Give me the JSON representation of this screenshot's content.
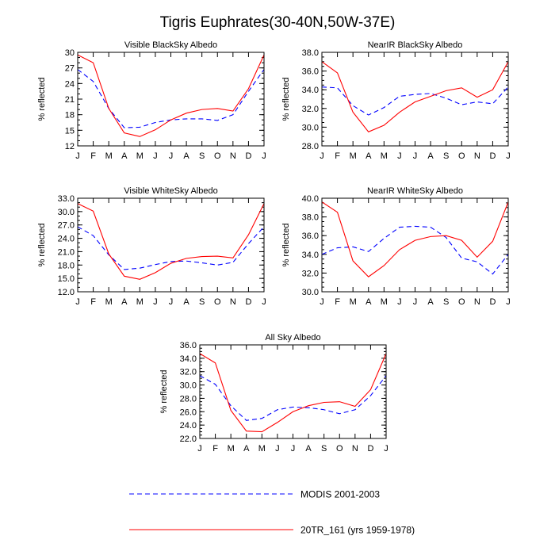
{
  "title": "Tigris Euphrates(30-40N,50W-37E)",
  "months": [
    "J",
    "F",
    "M",
    "A",
    "M",
    "J",
    "J",
    "A",
    "S",
    "O",
    "N",
    "D",
    "J"
  ],
  "legend": {
    "modis": {
      "label": "MODIS 2001-2003",
      "color": "#0000ff"
    },
    "tr": {
      "label": "20TR_161 (yrs 1959-1978)",
      "color": "#ff0000"
    }
  },
  "chart_data": [
    {
      "type": "line",
      "title": "Visible BlackSky Albedo",
      "ylabel": "% reflected",
      "ylim": [
        12,
        30
      ],
      "yticks": [
        "12",
        "15",
        "18",
        "21",
        "24",
        "27",
        "30"
      ],
      "yminor": 1,
      "series": [
        {
          "name": "MODIS 2001-2003",
          "key": "modis",
          "values": [
            26.7,
            24.4,
            19.2,
            15.5,
            15.6,
            16.5,
            17.0,
            17.2,
            17.2,
            16.9,
            18.0,
            22.5,
            26.7
          ]
        },
        {
          "name": "20TR_161 (yrs 1959-1978)",
          "key": "tr",
          "values": [
            29.5,
            28.0,
            19.2,
            14.5,
            13.8,
            15.1,
            17.0,
            18.3,
            19.0,
            19.2,
            18.7,
            23.0,
            29.5
          ]
        }
      ]
    },
    {
      "type": "line",
      "title": "NearIR BlackSky Albedo",
      "ylabel": "% reflected",
      "ylim": [
        28,
        38
      ],
      "yticks": [
        "28.0",
        "30.0",
        "32.0",
        "34.0",
        "36.0",
        "38.0"
      ],
      "yminor": 0.5,
      "series": [
        {
          "name": "MODIS 2001-2003",
          "key": "modis",
          "values": [
            34.3,
            34.2,
            32.3,
            31.3,
            32.1,
            33.3,
            33.5,
            33.6,
            33.1,
            32.4,
            32.7,
            32.5,
            34.3
          ]
        },
        {
          "name": "20TR_161 (yrs 1959-1978)",
          "key": "tr",
          "values": [
            37.0,
            35.8,
            31.6,
            29.5,
            30.2,
            31.6,
            32.7,
            33.3,
            33.9,
            34.2,
            33.2,
            34.0,
            37.0
          ]
        }
      ]
    },
    {
      "type": "line",
      "title": "Visible WhiteSky Albedo",
      "ylabel": "% reflected",
      "ylim": [
        12,
        33
      ],
      "yticks": [
        "12.0",
        "15.0",
        "18.0",
        "21.0",
        "24.0",
        "27.0",
        "30.0",
        "33.0"
      ],
      "yminor": 1,
      "series": [
        {
          "name": "MODIS 2001-2003",
          "key": "modis",
          "values": [
            26.6,
            24.6,
            20.3,
            17.0,
            17.3,
            18.1,
            18.8,
            18.9,
            18.5,
            18.0,
            18.6,
            22.8,
            26.6
          ]
        },
        {
          "name": "20TR_161 (yrs 1959-1978)",
          "key": "tr",
          "values": [
            31.8,
            30.1,
            20.5,
            15.5,
            14.8,
            16.3,
            18.4,
            19.5,
            19.9,
            20.0,
            19.6,
            24.8,
            31.8
          ]
        }
      ]
    },
    {
      "type": "line",
      "title": "NearIR WhiteSky Albedo",
      "ylabel": "% reflected",
      "ylim": [
        30,
        40
      ],
      "yticks": [
        "30.0",
        "32.0",
        "34.0",
        "36.0",
        "38.0",
        "40.0"
      ],
      "yminor": 0.5,
      "series": [
        {
          "name": "MODIS 2001-2003",
          "key": "modis",
          "values": [
            34.0,
            34.7,
            34.8,
            34.3,
            35.7,
            36.9,
            37.0,
            36.9,
            35.8,
            33.6,
            33.2,
            31.9,
            34.0
          ]
        },
        {
          "name": "20TR_161 (yrs 1959-1978)",
          "key": "tr",
          "values": [
            39.6,
            38.5,
            33.3,
            31.6,
            32.8,
            34.5,
            35.5,
            35.9,
            36.0,
            35.5,
            33.7,
            35.4,
            39.6
          ]
        }
      ]
    },
    {
      "type": "line",
      "title": "All Sky Albedo",
      "ylabel": "% reflected",
      "ylim": [
        22,
        36
      ],
      "yticks": [
        "22.0",
        "24.0",
        "26.0",
        "28.0",
        "30.0",
        "32.0",
        "34.0",
        "36.0"
      ],
      "yminor": 0.5,
      "series": [
        {
          "name": "MODIS 2001-2003",
          "key": "modis",
          "values": [
            31.4,
            30.1,
            26.9,
            24.7,
            25.0,
            26.3,
            26.7,
            26.6,
            26.3,
            25.7,
            26.3,
            28.4,
            31.4
          ]
        },
        {
          "name": "20TR_161 (yrs 1959-1978)",
          "key": "tr",
          "values": [
            34.7,
            33.3,
            26.2,
            23.1,
            23.0,
            24.4,
            26.0,
            26.9,
            27.4,
            27.5,
            26.8,
            29.3,
            34.7
          ]
        }
      ]
    }
  ]
}
